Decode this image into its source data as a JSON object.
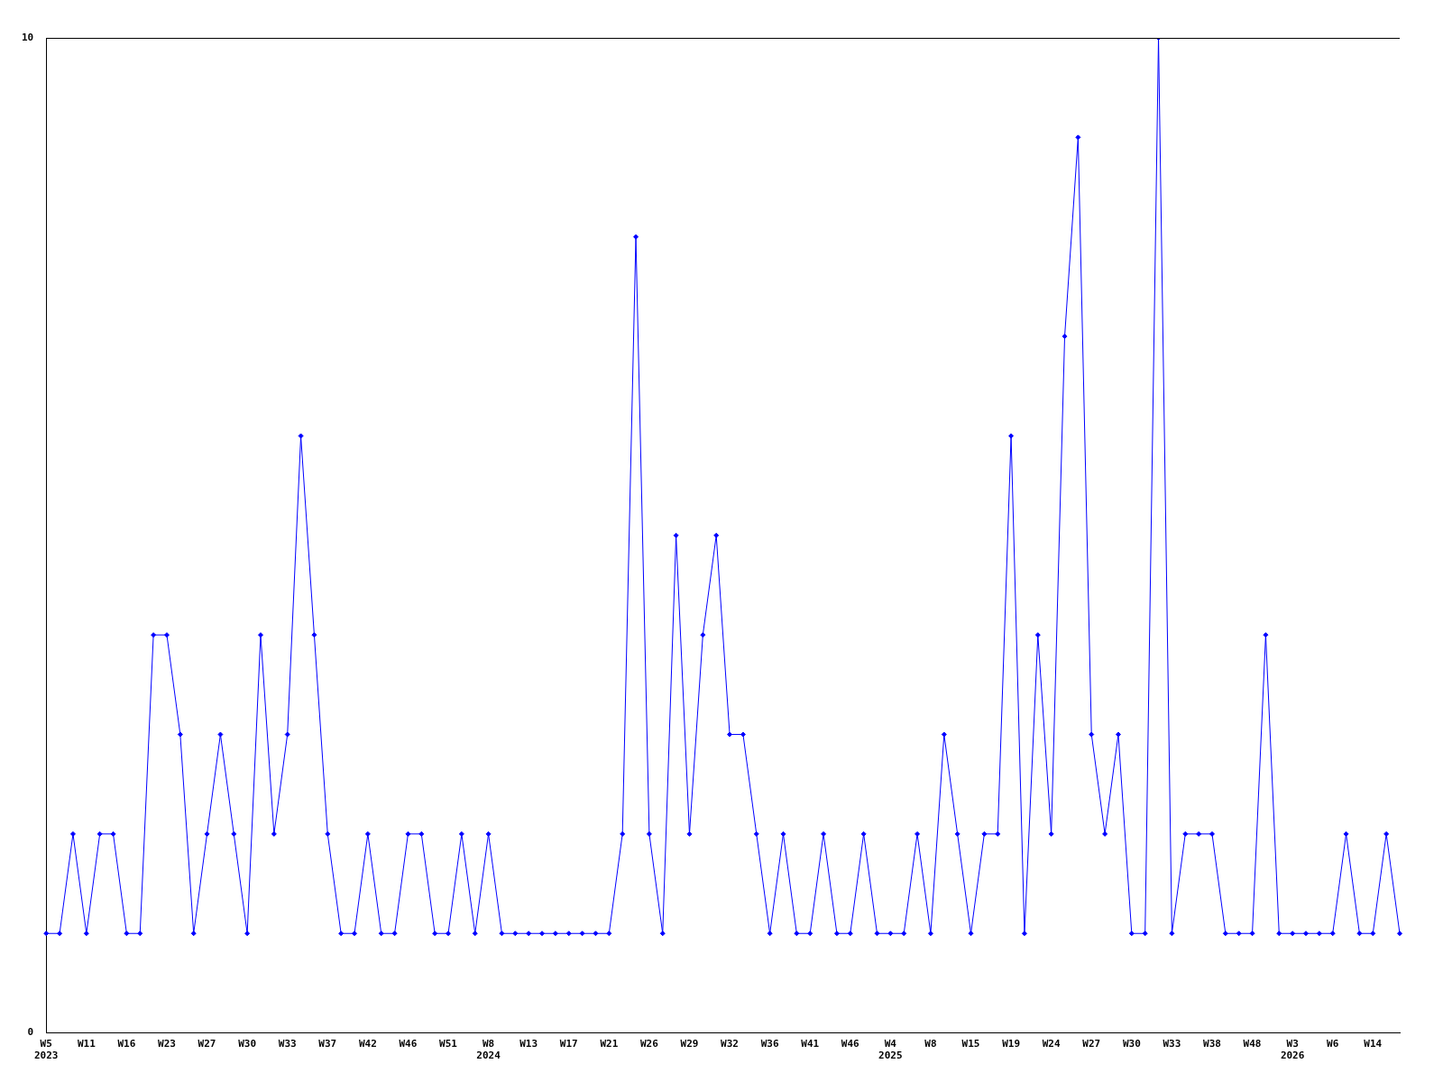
{
  "chart_data": {
    "type": "line",
    "categories": [
      "W5\n2023",
      null,
      null,
      "W11",
      null,
      null,
      "W16",
      null,
      null,
      "W23",
      null,
      null,
      "W27",
      null,
      null,
      "W30",
      null,
      null,
      "W33",
      null,
      null,
      "W37",
      null,
      null,
      "W42",
      null,
      null,
      "W46",
      null,
      null,
      "W51",
      null,
      null,
      "W8\n2024",
      null,
      null,
      "W13",
      null,
      null,
      "W17",
      null,
      null,
      "W21",
      null,
      null,
      "W26",
      null,
      null,
      "W29",
      null,
      null,
      "W32",
      null,
      null,
      "W36",
      null,
      null,
      "W41",
      null,
      null,
      "W46",
      null,
      null,
      "W4\n2025",
      null,
      null,
      "W8",
      null,
      null,
      "W15",
      null,
      null,
      "W19",
      null,
      null,
      "W24",
      null,
      null,
      "W27",
      null,
      null,
      "W30",
      null,
      null,
      "W33",
      null,
      null,
      "W38",
      null,
      null,
      "W48",
      null,
      null,
      "W3\n2026",
      null,
      null,
      "W6",
      null,
      null,
      "W14",
      null,
      null
    ],
    "series": [
      {
        "color": "#0000ff",
        "values": [
          1,
          1,
          2,
          1,
          2,
          2,
          1,
          1,
          4,
          4,
          3,
          1,
          2,
          3,
          2,
          1,
          4,
          2,
          3,
          6,
          4,
          2,
          1,
          1,
          2,
          1,
          1,
          2,
          2,
          1,
          1,
          2,
          1,
          2,
          1,
          1,
          1,
          1,
          1,
          1,
          1,
          1,
          1,
          2,
          8,
          2,
          1,
          5,
          2,
          4,
          5,
          3,
          3,
          2,
          1,
          2,
          1,
          1,
          2,
          1,
          1,
          2,
          1,
          1,
          1,
          2,
          1,
          3,
          2,
          1,
          2,
          2,
          6,
          1,
          4,
          2,
          7,
          9,
          3,
          2,
          3,
          1,
          1,
          10,
          1,
          2,
          2,
          2,
          1,
          1,
          1,
          4,
          1,
          1,
          1,
          1,
          1,
          2,
          1,
          1,
          2,
          1
        ]
      }
    ],
    "ylim": [
      0,
      10
    ],
    "yticks": [
      0,
      10
    ],
    "grid": false,
    "legend": false,
    "marker": "diamond",
    "line_style": "solid"
  }
}
